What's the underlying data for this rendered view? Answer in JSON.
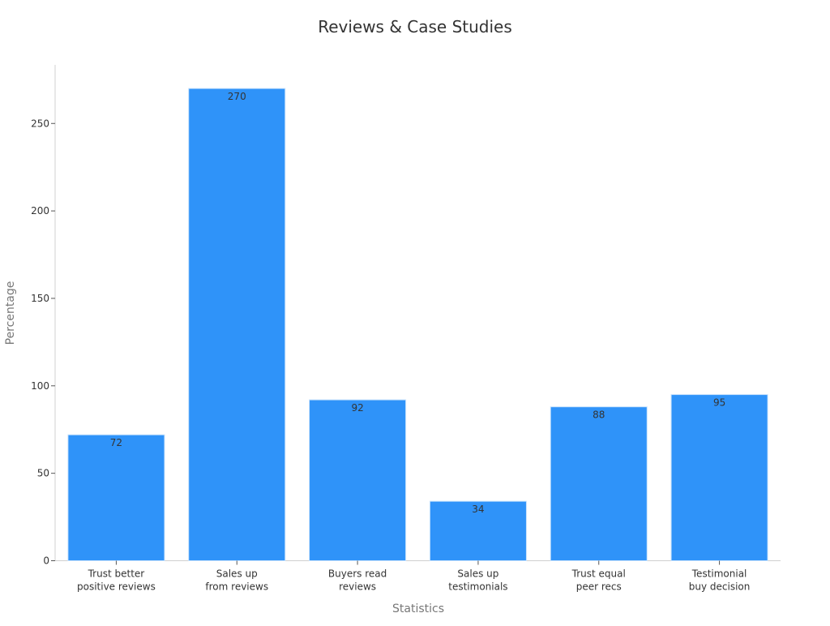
{
  "chart_data": {
    "type": "bar",
    "title": "Reviews & Case Studies",
    "xlabel": "Statistics",
    "ylabel": "Percentage",
    "categories": [
      [
        "Trust better",
        "positive reviews"
      ],
      [
        "Sales up",
        "from reviews"
      ],
      [
        "Buyers read",
        "reviews"
      ],
      [
        "Sales up",
        "testimonials"
      ],
      [
        "Trust equal",
        "peer recs"
      ],
      [
        "Testimonial",
        "buy decision"
      ]
    ],
    "values": [
      72,
      270,
      92,
      34,
      88,
      95
    ],
    "data_labels": [
      "72",
      "270",
      "92",
      "34",
      "88",
      "95"
    ],
    "y_ticks": [
      0,
      50,
      100,
      150,
      200,
      250
    ],
    "y_tick_labels": [
      "0",
      "50",
      "100",
      "150",
      "200",
      "250"
    ],
    "ylim": [
      0,
      283.5
    ],
    "grid": false,
    "legend": "none",
    "bar_color": "#2f93f9"
  }
}
